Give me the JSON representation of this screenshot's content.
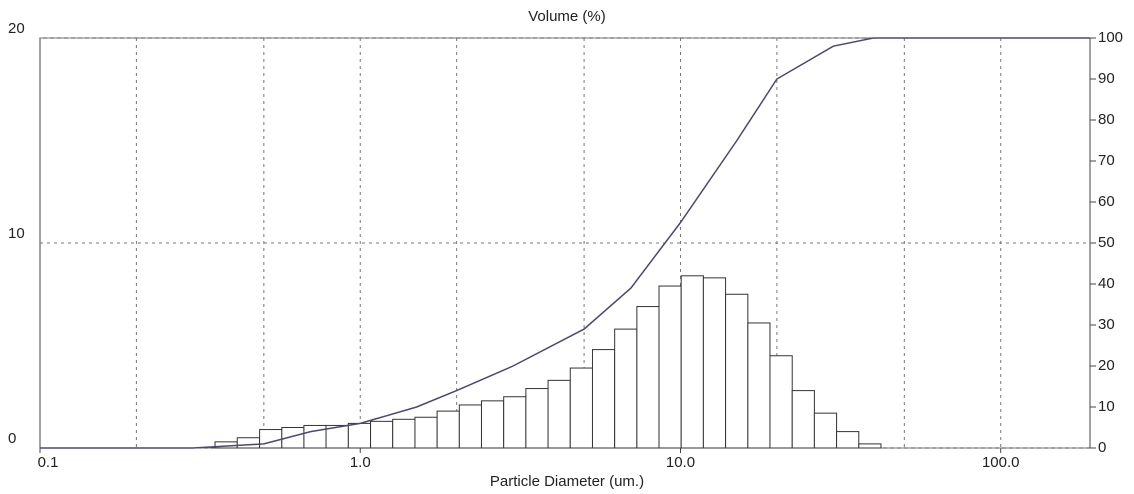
{
  "chart_data": {
    "type": "histogram",
    "title": "Volume (%)",
    "xlabel": "Particle Diameter (um.)",
    "log_x": true,
    "xlim": [
      0.1,
      190
    ],
    "xticks": [
      {
        "value": 0.1,
        "label": "0.1"
      },
      {
        "value": 1,
        "label": "1.0"
      },
      {
        "value": 10,
        "label": "10.0"
      },
      {
        "value": 100,
        "label": "100.0"
      }
    ],
    "xgrid": [
      0.2,
      0.5,
      1,
      2,
      5,
      10,
      20,
      50,
      100
    ],
    "ylim": [
      0,
      20
    ],
    "yticks": [
      0,
      10,
      20
    ],
    "y2lim": [
      0,
      100
    ],
    "y2ticks": [
      0,
      10,
      20,
      30,
      40,
      50,
      60,
      70,
      80,
      90,
      100
    ],
    "grid": true,
    "color": "#ffffff",
    "edge_color": "#333333",
    "bins": [
      0.352,
      0.413,
      0.485,
      0.569,
      0.667,
      0.782,
      0.918,
      1.077,
      1.263,
      1.482,
      1.738,
      2.039,
      2.391,
      2.805,
      3.29,
      3.859,
      4.527,
      5.311,
      6.23,
      7.308,
      8.57,
      10.05,
      11.79,
      13.83,
      16.23,
      19.03,
      22.33,
      26.19,
      30.72,
      36.04,
      42.27
    ],
    "counts": [
      0.3,
      0.5,
      0.9,
      1.0,
      1.1,
      1.1,
      1.2,
      1.3,
      1.4,
      1.5,
      1.8,
      2.1,
      2.3,
      2.5,
      2.9,
      3.3,
      3.9,
      4.8,
      5.8,
      6.9,
      7.9,
      8.4,
      8.3,
      7.5,
      6.1,
      4.5,
      2.8,
      1.7,
      0.8,
      0.2
    ],
    "series": [
      {
        "color": "#4a4a6a",
        "axis": "y2",
        "x": [
          0.1,
          0.3,
          0.5,
          0.7,
          1,
          1.5,
          2,
          3,
          5,
          7,
          10,
          15,
          20,
          30,
          40,
          190
        ],
        "values": [
          0,
          0,
          1,
          4,
          6,
          10,
          14,
          20,
          29,
          39,
          55,
          75,
          90,
          98,
          100,
          100
        ]
      }
    ]
  }
}
